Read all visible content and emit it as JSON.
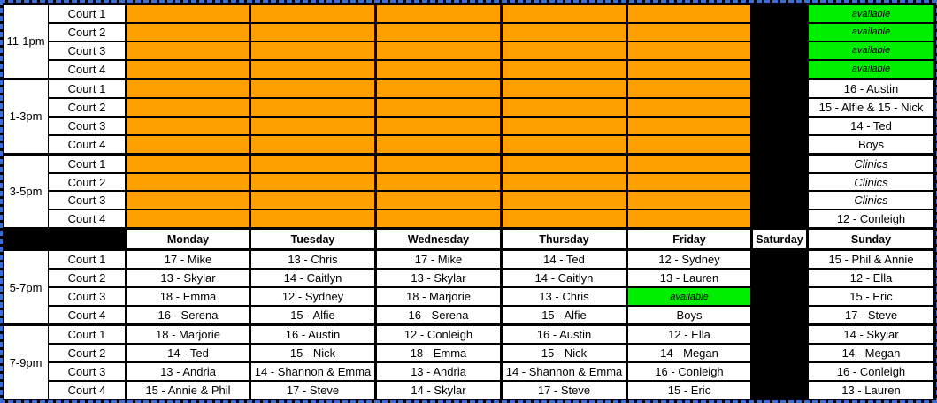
{
  "colors": {
    "orange": "#FFA000",
    "green": "#00EE00",
    "cell_black": "#000000",
    "page_break_blue": "#3D6CD4"
  },
  "table": {
    "days": [
      "Monday",
      "Tuesday",
      "Wednesday",
      "Thursday",
      "Friday",
      "Saturday",
      "Sunday"
    ],
    "top_sections": [
      {
        "time": "11-1pm",
        "rows": [
          {
            "court": "Court 1",
            "cells": [
              {
                "bg": "orange"
              },
              {
                "bg": "orange"
              },
              {
                "bg": "orange"
              },
              {
                "bg": "orange"
              },
              {
                "bg": "orange"
              },
              {
                "bg": "black"
              },
              {
                "bg": "green",
                "text": "available",
                "italic": true
              }
            ]
          },
          {
            "court": "Court 2",
            "cells": [
              {
                "bg": "orange"
              },
              {
                "bg": "orange"
              },
              {
                "bg": "orange"
              },
              {
                "bg": "orange"
              },
              {
                "bg": "orange"
              },
              {
                "bg": "black"
              },
              {
                "bg": "green",
                "text": "available",
                "italic": true
              }
            ]
          },
          {
            "court": "Court 3",
            "cells": [
              {
                "bg": "orange"
              },
              {
                "bg": "orange"
              },
              {
                "bg": "orange"
              },
              {
                "bg": "orange"
              },
              {
                "bg": "orange"
              },
              {
                "bg": "black"
              },
              {
                "bg": "green",
                "text": "available",
                "italic": true
              }
            ]
          },
          {
            "court": "Court 4",
            "cells": [
              {
                "bg": "orange"
              },
              {
                "bg": "orange"
              },
              {
                "bg": "orange"
              },
              {
                "bg": "orange"
              },
              {
                "bg": "orange"
              },
              {
                "bg": "black"
              },
              {
                "bg": "green",
                "text": "available",
                "italic": true
              }
            ]
          }
        ]
      },
      {
        "time": "1-3pm",
        "rows": [
          {
            "court": "Court 1",
            "cells": [
              {
                "bg": "orange"
              },
              {
                "bg": "orange"
              },
              {
                "bg": "orange"
              },
              {
                "bg": "orange"
              },
              {
                "bg": "orange"
              },
              {
                "bg": "black"
              },
              {
                "bg": "white",
                "text": "16 - Austin"
              }
            ]
          },
          {
            "court": "Court 2",
            "cells": [
              {
                "bg": "orange"
              },
              {
                "bg": "orange"
              },
              {
                "bg": "orange"
              },
              {
                "bg": "orange"
              },
              {
                "bg": "orange"
              },
              {
                "bg": "black"
              },
              {
                "bg": "white",
                "text": "15 - Alfie & 15 - Nick"
              }
            ]
          },
          {
            "court": "Court 3",
            "cells": [
              {
                "bg": "orange"
              },
              {
                "bg": "orange"
              },
              {
                "bg": "orange"
              },
              {
                "bg": "orange"
              },
              {
                "bg": "orange"
              },
              {
                "bg": "black"
              },
              {
                "bg": "white",
                "text": "14 - Ted"
              }
            ]
          },
          {
            "court": "Court 4",
            "cells": [
              {
                "bg": "orange"
              },
              {
                "bg": "orange"
              },
              {
                "bg": "orange"
              },
              {
                "bg": "orange"
              },
              {
                "bg": "orange"
              },
              {
                "bg": "black"
              },
              {
                "bg": "white",
                "text": "Boys"
              }
            ]
          }
        ]
      },
      {
        "time": "3-5pm",
        "rows": [
          {
            "court": "Court 1",
            "cells": [
              {
                "bg": "orange"
              },
              {
                "bg": "orange"
              },
              {
                "bg": "orange"
              },
              {
                "bg": "orange"
              },
              {
                "bg": "orange"
              },
              {
                "bg": "black"
              },
              {
                "bg": "white",
                "text": "Clinics",
                "italic": true
              }
            ]
          },
          {
            "court": "Court 2",
            "cells": [
              {
                "bg": "orange"
              },
              {
                "bg": "orange"
              },
              {
                "bg": "orange"
              },
              {
                "bg": "orange"
              },
              {
                "bg": "orange"
              },
              {
                "bg": "black"
              },
              {
                "bg": "white",
                "text": "Clinics",
                "italic": true
              }
            ]
          },
          {
            "court": "Court 3",
            "cells": [
              {
                "bg": "orange"
              },
              {
                "bg": "orange"
              },
              {
                "bg": "orange"
              },
              {
                "bg": "orange"
              },
              {
                "bg": "orange"
              },
              {
                "bg": "black"
              },
              {
                "bg": "white",
                "text": "Clinics",
                "italic": true
              }
            ]
          },
          {
            "court": "Court 4",
            "cells": [
              {
                "bg": "orange"
              },
              {
                "bg": "orange"
              },
              {
                "bg": "orange"
              },
              {
                "bg": "orange"
              },
              {
                "bg": "orange"
              },
              {
                "bg": "black"
              },
              {
                "bg": "white",
                "text": "12 - Conleigh"
              }
            ]
          }
        ]
      }
    ],
    "bottom_sections": [
      {
        "time": "5-7pm",
        "rows": [
          {
            "court": "Court 1",
            "cells": [
              {
                "bg": "white",
                "text": "17 - Mike"
              },
              {
                "bg": "white",
                "text": "13 - Chris"
              },
              {
                "bg": "white",
                "text": "17 - Mike"
              },
              {
                "bg": "white",
                "text": "14 - Ted"
              },
              {
                "bg": "white",
                "text": "12 - Sydney"
              },
              {
                "bg": "black"
              },
              {
                "bg": "white",
                "text": "15 - Phil & Annie"
              }
            ]
          },
          {
            "court": "Court 2",
            "cells": [
              {
                "bg": "white",
                "text": "13 - Skylar"
              },
              {
                "bg": "white",
                "text": "14 - Caitlyn"
              },
              {
                "bg": "white",
                "text": "13 - Skylar"
              },
              {
                "bg": "white",
                "text": "14 - Caitlyn"
              },
              {
                "bg": "white",
                "text": "13 - Lauren"
              },
              {
                "bg": "black"
              },
              {
                "bg": "white",
                "text": "12 - Ella"
              }
            ]
          },
          {
            "court": "Court 3",
            "cells": [
              {
                "bg": "white",
                "text": "18 - Emma"
              },
              {
                "bg": "white",
                "text": "12 - Sydney"
              },
              {
                "bg": "white",
                "text": "18 - Marjorie"
              },
              {
                "bg": "white",
                "text": "13 - Chris"
              },
              {
                "bg": "green",
                "text": "available",
                "italic": true
              },
              {
                "bg": "black"
              },
              {
                "bg": "white",
                "text": "15 - Eric"
              }
            ]
          },
          {
            "court": "Court 4",
            "cells": [
              {
                "bg": "white",
                "text": "16 - Serena"
              },
              {
                "bg": "white",
                "text": "15 - Alfie"
              },
              {
                "bg": "white",
                "text": "16 - Serena"
              },
              {
                "bg": "white",
                "text": "15 - Alfie"
              },
              {
                "bg": "white",
                "text": "Boys"
              },
              {
                "bg": "black"
              },
              {
                "bg": "white",
                "text": "17 - Steve"
              }
            ]
          }
        ]
      },
      {
        "time": "7-9pm",
        "rows": [
          {
            "court": "Court 1",
            "cells": [
              {
                "bg": "white",
                "text": "18 - Marjorie"
              },
              {
                "bg": "white",
                "text": "16 - Austin"
              },
              {
                "bg": "white",
                "text": "12 - Conleigh"
              },
              {
                "bg": "white",
                "text": "16 - Austin"
              },
              {
                "bg": "white",
                "text": "12 - Ella"
              },
              {
                "bg": "black"
              },
              {
                "bg": "white",
                "text": "14 - Skylar"
              }
            ]
          },
          {
            "court": "Court 2",
            "cells": [
              {
                "bg": "white",
                "text": "14 - Ted"
              },
              {
                "bg": "white",
                "text": "15 - Nick"
              },
              {
                "bg": "white",
                "text": "18 - Emma"
              },
              {
                "bg": "white",
                "text": "15 - Nick"
              },
              {
                "bg": "white",
                "text": "14 - Megan"
              },
              {
                "bg": "black"
              },
              {
                "bg": "white",
                "text": "14 - Megan"
              }
            ]
          },
          {
            "court": "Court 3",
            "cells": [
              {
                "bg": "white",
                "text": "13 - Andria"
              },
              {
                "bg": "white",
                "text": "14 - Shannon & Emma"
              },
              {
                "bg": "white",
                "text": "13 - Andria"
              },
              {
                "bg": "white",
                "text": "14 - Shannon & Emma"
              },
              {
                "bg": "white",
                "text": "16 - Conleigh"
              },
              {
                "bg": "black"
              },
              {
                "bg": "white",
                "text": "16 - Conleigh"
              }
            ]
          },
          {
            "court": "Court 4",
            "cells": [
              {
                "bg": "white",
                "text": "15 - Annie & Phil"
              },
              {
                "bg": "white",
                "text": "17 - Steve"
              },
              {
                "bg": "white",
                "text": "14 - Skylar"
              },
              {
                "bg": "white",
                "text": "17 - Steve"
              },
              {
                "bg": "white",
                "text": "15 - Eric"
              },
              {
                "bg": "black"
              },
              {
                "bg": "white",
                "text": "13 - Lauren"
              }
            ]
          }
        ]
      }
    ]
  }
}
